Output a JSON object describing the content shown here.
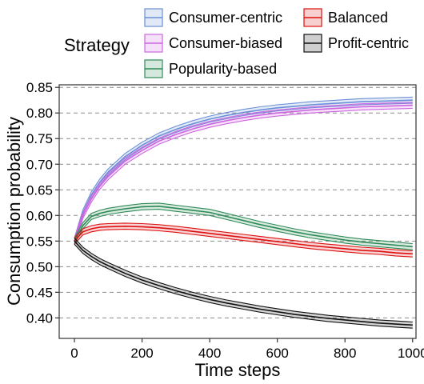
{
  "chart_data": {
    "type": "line",
    "xlabel": "Time steps",
    "ylabel": "Consumption probability",
    "xlim": [
      -45,
      1010
    ],
    "ylim": [
      0.36,
      0.855
    ],
    "x_ticks": [
      0,
      200,
      400,
      600,
      800,
      1000
    ],
    "x_tick_labels": [
      "0",
      "200",
      "400",
      "600",
      "800",
      "1000"
    ],
    "y_ticks": [
      0.4,
      0.45,
      0.5,
      0.55,
      0.6,
      0.65,
      0.7,
      0.75,
      0.8,
      0.85
    ],
    "y_tick_labels": [
      "0.40",
      "0.45",
      "0.50",
      "0.55",
      "0.60",
      "0.65",
      "0.70",
      "0.75",
      "0.80",
      "0.85"
    ],
    "grid": "horizontal dashed",
    "legend_position": "top",
    "legend_title": "Strategy",
    "band_halfwidth": 0.006,
    "x": [
      0,
      25,
      50,
      75,
      100,
      150,
      200,
      250,
      300,
      350,
      400,
      450,
      500,
      550,
      600,
      650,
      700,
      750,
      800,
      850,
      900,
      950,
      1000
    ],
    "series": [
      {
        "name": "Consumer-centric",
        "color": "#6b8fd6",
        "values": [
          0.55,
          0.605,
          0.64,
          0.665,
          0.685,
          0.715,
          0.737,
          0.755,
          0.768,
          0.779,
          0.788,
          0.795,
          0.801,
          0.806,
          0.81,
          0.813,
          0.816,
          0.818,
          0.82,
          0.822,
          0.823,
          0.824,
          0.825
        ]
      },
      {
        "name": "Consumer-biased",
        "color": "#cc66e0",
        "values": [
          0.55,
          0.6,
          0.632,
          0.657,
          0.676,
          0.706,
          0.727,
          0.745,
          0.758,
          0.769,
          0.778,
          0.785,
          0.791,
          0.796,
          0.8,
          0.803,
          0.806,
          0.808,
          0.81,
          0.812,
          0.813,
          0.814,
          0.815
        ]
      },
      {
        "name": "Popularity-based",
        "color": "#2e8b57",
        "values": [
          0.55,
          0.58,
          0.598,
          0.604,
          0.608,
          0.613,
          0.617,
          0.618,
          0.614,
          0.61,
          0.606,
          0.598,
          0.59,
          0.582,
          0.575,
          0.568,
          0.562,
          0.557,
          0.552,
          0.548,
          0.545,
          0.542,
          0.539
        ]
      },
      {
        "name": "Balanced",
        "color": "#dd1111",
        "values": [
          0.55,
          0.568,
          0.574,
          0.577,
          0.578,
          0.579,
          0.578,
          0.576,
          0.573,
          0.569,
          0.565,
          0.561,
          0.557,
          0.553,
          0.549,
          0.545,
          0.541,
          0.538,
          0.535,
          0.532,
          0.53,
          0.527,
          0.525
        ]
      },
      {
        "name": "Profit-centric",
        "color": "#111111",
        "values": [
          0.55,
          0.532,
          0.52,
          0.51,
          0.502,
          0.487,
          0.474,
          0.463,
          0.453,
          0.444,
          0.436,
          0.429,
          0.423,
          0.417,
          0.412,
          0.407,
          0.403,
          0.399,
          0.396,
          0.393,
          0.39,
          0.388,
          0.386
        ]
      }
    ]
  }
}
